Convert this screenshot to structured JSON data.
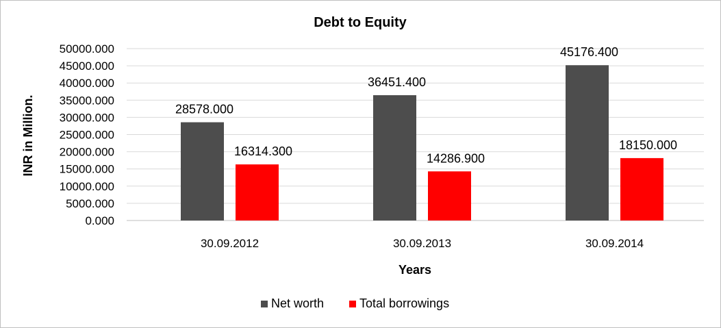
{
  "chart_data": {
    "type": "bar",
    "title": "Debt to Equity",
    "xlabel": "Years",
    "ylabel": "INR in Million.",
    "categories": [
      "30.09.2012",
      "30.09.2013",
      "30.09.2014"
    ],
    "series": [
      {
        "name": "Net worth",
        "color": "#4d4d4d",
        "values": [
          28578.0,
          36451.4,
          45176.4
        ],
        "labels": [
          "28578.000",
          "36451.400",
          "45176.400"
        ]
      },
      {
        "name": "Total borrowings",
        "color": "#ff0000",
        "values": [
          16314.3,
          14286.9,
          18150.0
        ],
        "labels": [
          "16314.300",
          "14286.900",
          "18150.000"
        ]
      }
    ],
    "ylim": [
      0,
      50000
    ],
    "yticks": [
      "0.000",
      "5000.000",
      "10000.000",
      "15000.000",
      "20000.000",
      "25000.000",
      "30000.000",
      "35000.000",
      "40000.000",
      "45000.000",
      "50000.000"
    ],
    "grid": true,
    "legend_position": "bottom"
  }
}
